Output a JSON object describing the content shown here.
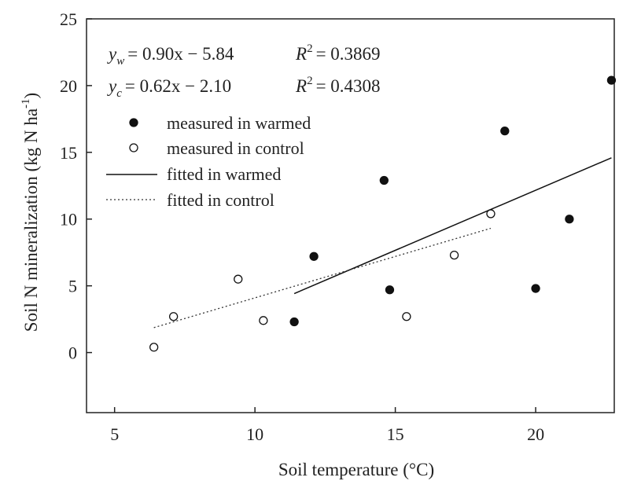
{
  "chart_data": {
    "type": "scatter",
    "title": "",
    "xlabel": "Soil temperature (°C)",
    "ylabel_main": "Soil N mineralization (kg N ha",
    "ylabel_sup": "-1",
    "ylabel_close": ")",
    "xlim": [
      4,
      22.8
    ],
    "ylim": [
      -4.5,
      25
    ],
    "xticks": [
      5,
      10,
      15,
      20
    ],
    "yticks": [
      0,
      5,
      10,
      15,
      20,
      25
    ],
    "grid": false,
    "legend_position": "top-left",
    "equations": [
      {
        "y": "y",
        "sub": "w",
        "formula": "= 0.90x − 5.84",
        "r_label": "R",
        "r_sup": "2",
        "r_value": "= 0.3869"
      },
      {
        "y": "y",
        "sub": "c",
        "formula": "= 0.62x − 2.10",
        "r_label": "R",
        "r_sup": "2",
        "r_value": "= 0.4308"
      }
    ],
    "series": [
      {
        "name": "measured in warmed",
        "marker": "filled-circle",
        "x": [
          11.4,
          12.1,
          14.6,
          14.8,
          18.9,
          20.0,
          21.2,
          22.7
        ],
        "y": [
          2.3,
          7.2,
          12.9,
          4.7,
          16.6,
          4.8,
          10.0,
          20.4
        ]
      },
      {
        "name": "measured in control",
        "marker": "open-circle",
        "x": [
          6.4,
          7.1,
          9.4,
          10.3,
          15.4,
          17.1,
          18.4
        ],
        "y": [
          0.4,
          2.7,
          5.5,
          2.4,
          2.7,
          7.3,
          10.4
        ]
      },
      {
        "name": "fitted in warmed",
        "marker": "solid-line",
        "slope": 0.9,
        "intercept": -5.84,
        "x_range": [
          11.4,
          22.7
        ]
      },
      {
        "name": "fitted in control",
        "marker": "dotted-line",
        "slope": 0.62,
        "intercept": -2.1,
        "x_range": [
          6.4,
          18.4
        ]
      }
    ]
  }
}
